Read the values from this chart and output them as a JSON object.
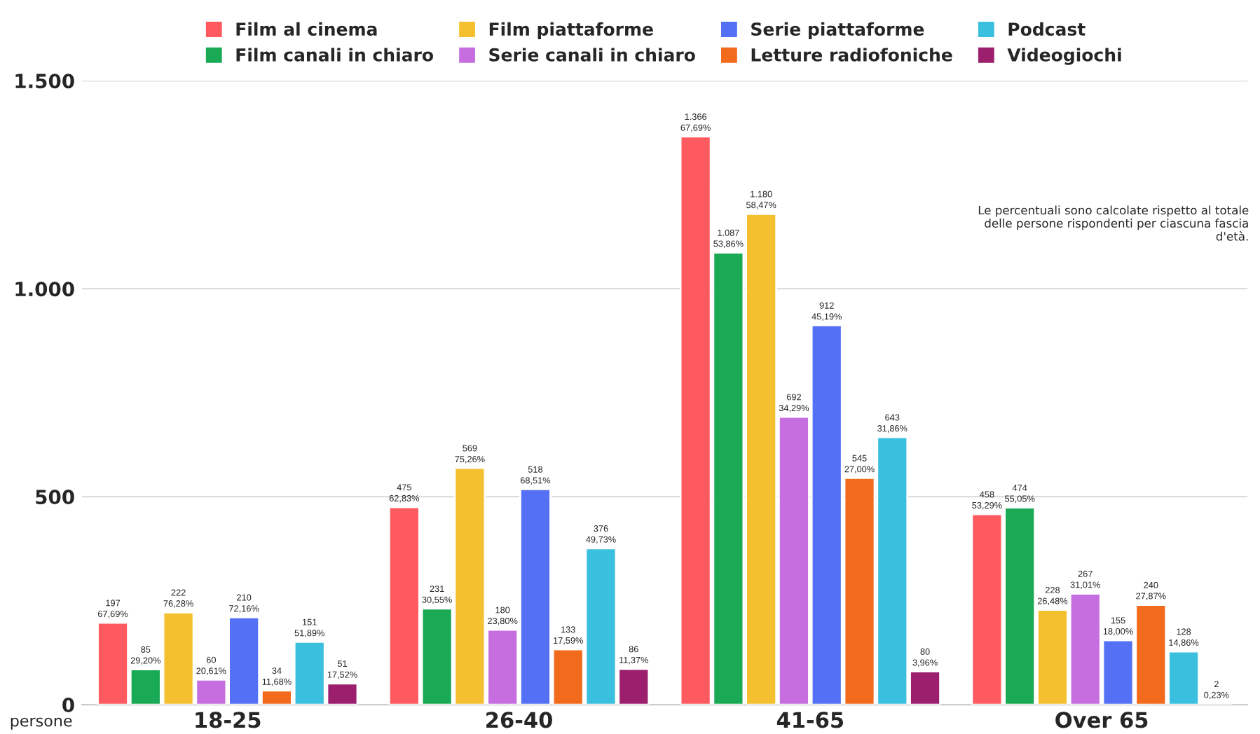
{
  "chart_data": {
    "type": "bar",
    "categories": [
      "18-25",
      "26-40",
      "41-65",
      "Over 65"
    ],
    "ylabel": "persone",
    "ylim": [
      0,
      1500
    ],
    "yticks": [
      {
        "value": 0,
        "label": "0"
      },
      {
        "value": 500,
        "label": "500"
      },
      {
        "value": 1000,
        "label": "1.000"
      },
      {
        "value": 1500,
        "label": "1.500"
      }
    ],
    "grid": "y",
    "legend": "top",
    "annotations": [
      "Le percentuali sono calcolate rispetto al totale delle persone rispondenti per ciascuna fascia d'età."
    ],
    "series": [
      {
        "name": "Film al cinema",
        "color": "#ff5a5f",
        "values": [
          197,
          475,
          1366,
          458
        ],
        "value_labels": [
          "197\n67,69%",
          "475\n62,83%",
          "1.366\n67,69%",
          "458\n53,29%"
        ]
      },
      {
        "name": "Film canali in chiaro",
        "color": "#1aaa55",
        "values": [
          85,
          231,
          1087,
          474
        ],
        "value_labels": [
          "85\n29,20%",
          "231\n30,55%",
          "1.087\n53,86%",
          "474\n55,05%"
        ]
      },
      {
        "name": "Film piattaforme",
        "color": "#f5c02f",
        "values": [
          222,
          569,
          1180,
          228
        ],
        "value_labels": [
          "222\n76,28%",
          "569\n75,26%",
          "1.180\n58,47%",
          "228\n26,48%"
        ]
      },
      {
        "name": "Serie canali in chiaro",
        "color": "#c66ee0",
        "values": [
          60,
          180,
          692,
          267
        ],
        "value_labels": [
          "60\n20,61%",
          "180\n23,80%",
          "692\n34,29%",
          "267\n31,01%"
        ]
      },
      {
        "name": "Serie piattaforme",
        "color": "#5470f5",
        "values": [
          210,
          518,
          912,
          155
        ],
        "value_labels": [
          "210\n72,16%",
          "518\n68,51%",
          "912\n45,19%",
          "155\n18,00%"
        ]
      },
      {
        "name": "Letture radiofoniche",
        "color": "#f26b1d",
        "values": [
          34,
          133,
          545,
          240
        ],
        "value_labels": [
          "34\n11,68%",
          "133\n17,59%",
          "545\n27,00%",
          "240\n27,87%"
        ]
      },
      {
        "name": "Podcast",
        "color": "#3bbfdf",
        "values": [
          151,
          376,
          643,
          128
        ],
        "value_labels": [
          "151\n51,89%",
          "376\n49,73%",
          "643\n31,86%",
          "128\n14,86%"
        ]
      },
      {
        "name": "Videogiochi",
        "color": "#9c1f6e",
        "values": [
          51,
          86,
          80,
          2
        ],
        "value_labels": [
          "51\n17,52%",
          "86\n11,37%",
          "80\n3,96%",
          "2\n0,23%"
        ]
      }
    ]
  }
}
